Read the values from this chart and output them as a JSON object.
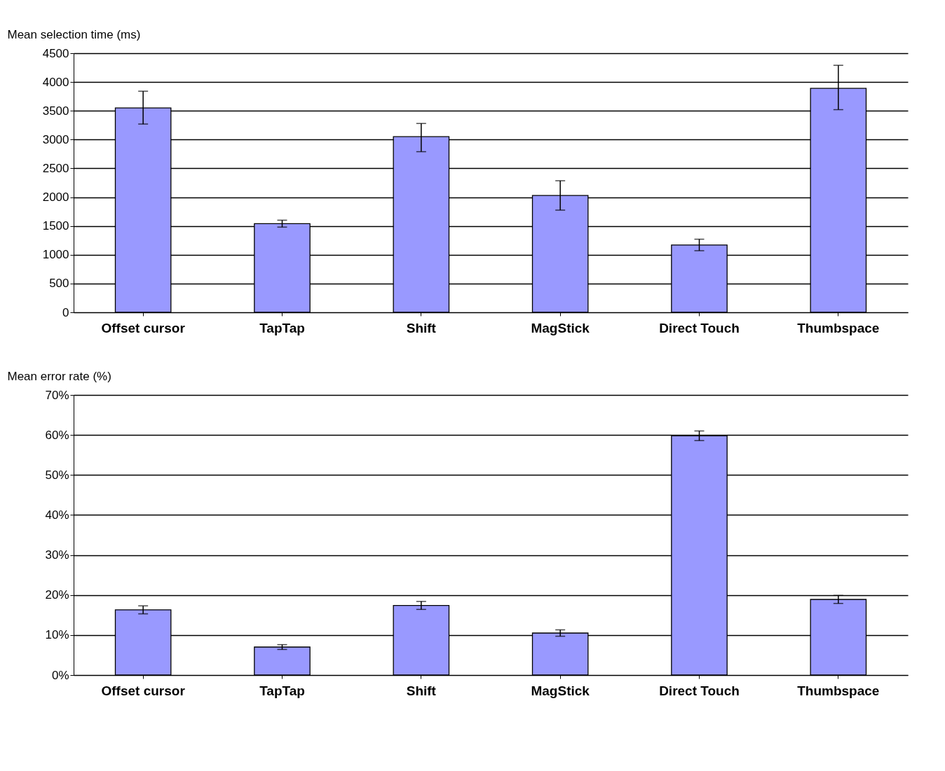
{
  "chart_data": [
    {
      "type": "bar",
      "ylabel": "Mean selection time (ms)",
      "categories": [
        "Offset cursor",
        "TapTap",
        "Shift",
        "MagStick",
        "Direct Touch",
        "Thumbspace"
      ],
      "values": [
        3550,
        1540,
        3050,
        2030,
        1170,
        3890
      ],
      "errors": [
        [
          3270,
          3840
        ],
        [
          1480,
          1600
        ],
        [
          2790,
          3280
        ],
        [
          1775,
          2285
        ],
        [
          1070,
          1270
        ],
        [
          3520,
          4290
        ]
      ],
      "color": "#9999ff",
      "ylim": [
        0,
        4500
      ],
      "yticks": [
        0,
        500,
        1000,
        1500,
        2000,
        2500,
        3000,
        3500,
        4000,
        4500
      ],
      "grid": "y"
    },
    {
      "type": "bar",
      "ylabel": "Mean error rate (%)",
      "categories": [
        "Offset cursor",
        "TapTap",
        "Shift",
        "MagStick",
        "Direct Touch",
        "Thumbspace"
      ],
      "values": [
        16.3,
        7,
        17.4,
        10.5,
        59.8,
        18.9
      ],
      "errors": [
        [
          15.3,
          17.3
        ],
        [
          6.4,
          7.6
        ],
        [
          16.4,
          18.4
        ],
        [
          9.7,
          11.3
        ],
        [
          58.6,
          61
        ],
        [
          17.9,
          19.9
        ]
      ],
      "color": "#9999ff",
      "ylim": [
        0,
        70
      ],
      "yticks": [
        {
          "value": 0,
          "label": "0%"
        },
        {
          "value": 10,
          "label": "10%"
        },
        {
          "value": 20,
          "label": "20%"
        },
        {
          "value": 30,
          "label": "30%"
        },
        {
          "value": 40,
          "label": "40%"
        },
        {
          "value": 50,
          "label": "50%"
        },
        {
          "value": 60,
          "label": "60%"
        },
        {
          "value": 70,
          "label": "70%"
        }
      ],
      "grid": "y"
    }
  ]
}
